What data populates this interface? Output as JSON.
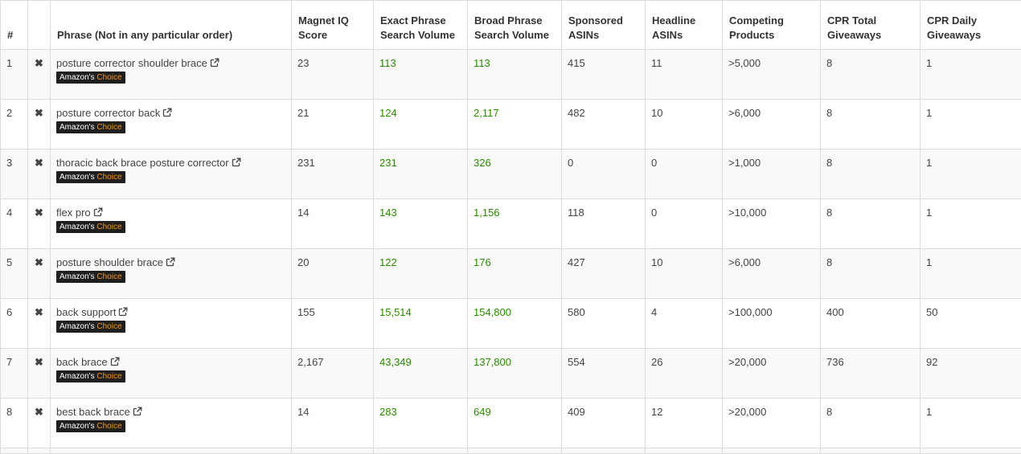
{
  "table": {
    "headers": [
      "#",
      "",
      "Phrase (Not in any particular order)",
      "Magnet IQ Score",
      "Exact Phrase Search Volume",
      "Broad Phrase Search Volume",
      "Sponsored ASINs",
      "Headline ASINs",
      "Competing Products",
      "CPR Total Giveaways",
      "CPR Daily Giveaways"
    ],
    "badge_prefix": "Amazon's",
    "badge_highlight": "Choice",
    "remove_glyph": "✖",
    "rows": [
      {
        "num": "1",
        "phrase": "posture corrector shoulder brace",
        "iq": "23",
        "exact": "113",
        "broad": "113",
        "sponsored": "415",
        "headline": "11",
        "competing": ">5,000",
        "cpr_total": "8",
        "cpr_daily": "1"
      },
      {
        "num": "2",
        "phrase": "posture corrector back",
        "iq": "21",
        "exact": "124",
        "broad": "2,117",
        "sponsored": "482",
        "headline": "10",
        "competing": ">6,000",
        "cpr_total": "8",
        "cpr_daily": "1"
      },
      {
        "num": "3",
        "phrase": "thoracic back brace posture corrector",
        "iq": "231",
        "exact": "231",
        "broad": "326",
        "sponsored": "0",
        "headline": "0",
        "competing": ">1,000",
        "cpr_total": "8",
        "cpr_daily": "1"
      },
      {
        "num": "4",
        "phrase": "flex pro",
        "iq": "14",
        "exact": "143",
        "broad": "1,156",
        "sponsored": "118",
        "headline": "0",
        "competing": ">10,000",
        "cpr_total": "8",
        "cpr_daily": "1"
      },
      {
        "num": "5",
        "phrase": "posture shoulder brace",
        "iq": "20",
        "exact": "122",
        "broad": "176",
        "sponsored": "427",
        "headline": "10",
        "competing": ">6,000",
        "cpr_total": "8",
        "cpr_daily": "1"
      },
      {
        "num": "6",
        "phrase": "back support",
        "iq": "155",
        "exact": "15,514",
        "broad": "154,800",
        "sponsored": "580",
        "headline": "4",
        "competing": ">100,000",
        "cpr_total": "400",
        "cpr_daily": "50"
      },
      {
        "num": "7",
        "phrase": "back brace",
        "iq": "2,167",
        "exact": "43,349",
        "broad": "137,800",
        "sponsored": "554",
        "headline": "26",
        "competing": ">20,000",
        "cpr_total": "736",
        "cpr_daily": "92"
      },
      {
        "num": "8",
        "phrase": "best back brace",
        "iq": "14",
        "exact": "283",
        "broad": "649",
        "sponsored": "409",
        "headline": "12",
        "competing": ">20,000",
        "cpr_total": "8",
        "cpr_daily": "1"
      }
    ]
  },
  "colors": {
    "volume_green": "#2b8a00",
    "badge_bg": "#1f1f1f",
    "badge_highlight": "#f7941d",
    "row_stripe": "#f9f9f9",
    "border": "#dddddd"
  },
  "icons": {
    "remove": "close-icon",
    "external_link": "external-link-icon"
  }
}
